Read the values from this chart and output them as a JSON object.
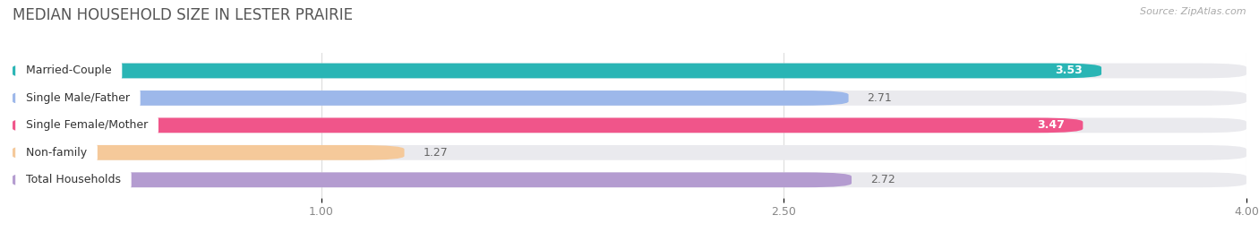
{
  "title": "MEDIAN HOUSEHOLD SIZE IN LESTER PRAIRIE",
  "source": "Source: ZipAtlas.com",
  "categories": [
    "Married-Couple",
    "Single Male/Father",
    "Single Female/Mother",
    "Non-family",
    "Total Households"
  ],
  "values": [
    3.53,
    2.71,
    3.47,
    1.27,
    2.72
  ],
  "bar_colors": [
    "#2ab5b5",
    "#9db8ea",
    "#f0558a",
    "#f5c99a",
    "#b49cd0"
  ],
  "value_in_bar": [
    true,
    false,
    true,
    false,
    false
  ],
  "xlim": [
    0,
    4.0
  ],
  "xmin": 0,
  "xticks": [
    1.0,
    2.5,
    4.0
  ],
  "background_color": "#ffffff",
  "bar_background_color": "#eaeaee",
  "title_fontsize": 12,
  "source_fontsize": 8,
  "label_fontsize": 9,
  "value_fontsize": 9
}
